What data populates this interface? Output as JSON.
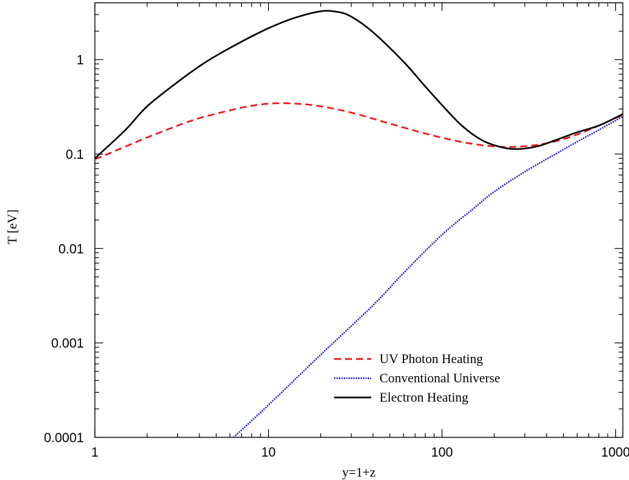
{
  "chart_data": {
    "type": "line",
    "title": "",
    "xlabel": "y=1+z",
    "ylabel": "T  [eV]",
    "xscale": "log",
    "yscale": "log",
    "xlim": [
      1,
      1100
    ],
    "ylim": [
      0.0001,
      4
    ],
    "x_ticks": [
      1,
      10,
      100,
      1000
    ],
    "x_tick_labels": [
      "1",
      "10",
      "100",
      "1000"
    ],
    "y_ticks": [
      0.0001,
      0.001,
      0.01,
      0.1,
      1
    ],
    "y_tick_labels": [
      "0.0001",
      "0.001",
      "0.01",
      "0.1",
      "1"
    ],
    "grid": false,
    "legend_position": "bottom-right",
    "series": [
      {
        "name": "UV Photon Heating",
        "color": "#ee1111",
        "style": "dashed",
        "points": [
          [
            1,
            0.088
          ],
          [
            1.5,
            0.12
          ],
          [
            2,
            0.15
          ],
          [
            3,
            0.2
          ],
          [
            4,
            0.24
          ],
          [
            6,
            0.29
          ],
          [
            8,
            0.325
          ],
          [
            11,
            0.345
          ],
          [
            15,
            0.34
          ],
          [
            20,
            0.32
          ],
          [
            30,
            0.275
          ],
          [
            50,
            0.21
          ],
          [
            80,
            0.165
          ],
          [
            120,
            0.138
          ],
          [
            170,
            0.124
          ],
          [
            230,
            0.119
          ],
          [
            300,
            0.121
          ],
          [
            400,
            0.13
          ],
          [
            550,
            0.152
          ],
          [
            750,
            0.19
          ],
          [
            1100,
            0.26
          ]
        ]
      },
      {
        "name": "Conventional Universe",
        "color": "#1111dd",
        "style": "dotted",
        "points": [
          [
            6.3,
            0.0001
          ],
          [
            10,
            0.00022
          ],
          [
            20,
            0.00075
          ],
          [
            40,
            0.0025
          ],
          [
            60,
            0.0055
          ],
          [
            100,
            0.014
          ],
          [
            150,
            0.026
          ],
          [
            200,
            0.04
          ],
          [
            300,
            0.065
          ],
          [
            450,
            0.1
          ],
          [
            600,
            0.135
          ],
          [
            800,
            0.18
          ],
          [
            1100,
            0.25
          ]
        ]
      },
      {
        "name": "Electron Heating",
        "color": "#000000",
        "style": "solid",
        "points": [
          [
            1,
            0.09
          ],
          [
            1.5,
            0.18
          ],
          [
            2,
            0.32
          ],
          [
            3,
            0.58
          ],
          [
            4,
            0.85
          ],
          [
            5,
            1.1
          ],
          [
            7,
            1.55
          ],
          [
            10,
            2.15
          ],
          [
            14,
            2.75
          ],
          [
            20,
            3.25
          ],
          [
            25,
            3.2
          ],
          [
            30,
            2.85
          ],
          [
            40,
            1.95
          ],
          [
            60,
            0.95
          ],
          [
            80,
            0.52
          ],
          [
            100,
            0.33
          ],
          [
            130,
            0.2
          ],
          [
            170,
            0.14
          ],
          [
            220,
            0.118
          ],
          [
            270,
            0.113
          ],
          [
            350,
            0.12
          ],
          [
            450,
            0.14
          ],
          [
            600,
            0.17
          ],
          [
            800,
            0.2
          ],
          [
            1100,
            0.265
          ]
        ]
      }
    ]
  }
}
